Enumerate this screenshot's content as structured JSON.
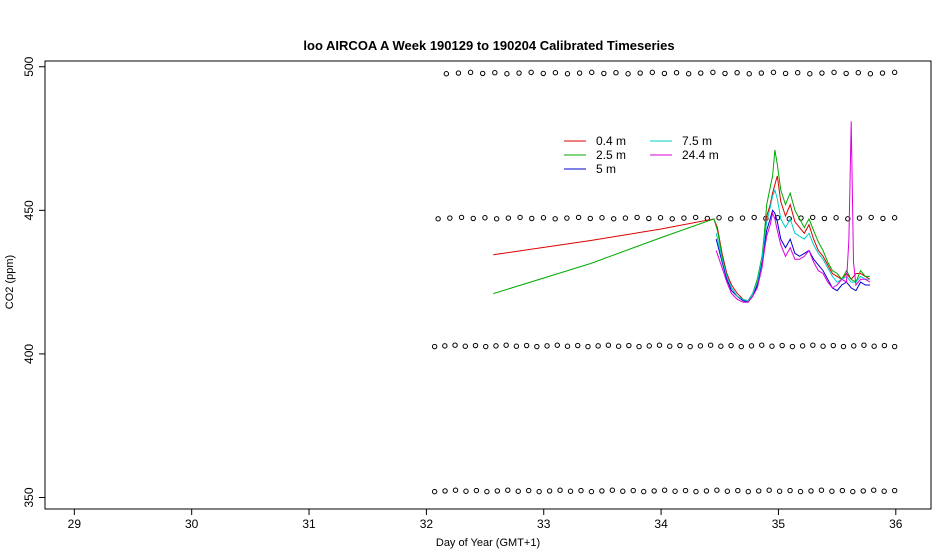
{
  "chart_data": {
    "type": "line",
    "title": "loo AIRCOA A  Week 190129 to 190204  Calibrated Timeseries",
    "xlabel": "Day of Year (GMT+1)",
    "ylabel": "CO2 (ppm)",
    "xlim": [
      28.75,
      36.3
    ],
    "ylim": [
      346,
      502
    ],
    "xticks": [
      29,
      30,
      31,
      32,
      33,
      34,
      35,
      36
    ],
    "yticks": [
      350,
      400,
      450,
      500
    ],
    "grid": false,
    "legend_position": "top-center",
    "series": [
      {
        "name": "0.4 m",
        "color": "#dd0000",
        "points": [
          [
            32.57,
            434.5
          ],
          [
            33.4,
            439.5
          ],
          [
            34.0,
            443.5
          ],
          [
            34.45,
            447.0
          ],
          [
            34.48,
            444
          ],
          [
            34.52,
            435
          ],
          [
            34.56,
            428
          ],
          [
            34.6,
            424
          ],
          [
            34.65,
            421
          ],
          [
            34.7,
            419
          ],
          [
            34.74,
            418.5
          ],
          [
            34.78,
            421
          ],
          [
            34.82,
            425
          ],
          [
            34.86,
            432
          ],
          [
            34.88,
            440
          ],
          [
            34.9,
            448
          ],
          [
            34.93,
            452
          ],
          [
            34.95,
            456
          ],
          [
            34.97,
            459
          ],
          [
            34.99,
            462
          ],
          [
            35.02,
            453
          ],
          [
            35.06,
            448
          ],
          [
            35.1,
            452
          ],
          [
            35.14,
            446
          ],
          [
            35.18,
            444
          ],
          [
            35.22,
            442
          ],
          [
            35.26,
            445
          ],
          [
            35.3,
            440
          ],
          [
            35.34,
            436
          ],
          [
            35.38,
            434
          ],
          [
            35.42,
            431
          ],
          [
            35.46,
            428
          ],
          [
            35.5,
            427
          ],
          [
            35.54,
            426
          ],
          [
            35.58,
            428
          ],
          [
            35.62,
            426
          ],
          [
            35.66,
            428
          ],
          [
            35.7,
            428
          ],
          [
            35.74,
            427
          ],
          [
            35.78,
            426
          ]
        ]
      },
      {
        "name": "2.5 m",
        "color": "#00aa00",
        "points": [
          [
            32.57,
            421.0
          ],
          [
            33.4,
            431.5
          ],
          [
            34.0,
            440.5
          ],
          [
            34.45,
            447.0
          ],
          [
            34.48,
            443
          ],
          [
            34.52,
            434
          ],
          [
            34.56,
            427
          ],
          [
            34.6,
            423
          ],
          [
            34.65,
            420
          ],
          [
            34.7,
            419
          ],
          [
            34.74,
            418
          ],
          [
            34.78,
            421
          ],
          [
            34.82,
            426
          ],
          [
            34.86,
            434
          ],
          [
            34.88,
            442
          ],
          [
            34.9,
            452
          ],
          [
            34.93,
            458
          ],
          [
            34.95,
            462
          ],
          [
            34.97,
            471
          ],
          [
            34.99,
            466
          ],
          [
            35.02,
            457
          ],
          [
            35.06,
            452
          ],
          [
            35.1,
            456
          ],
          [
            35.14,
            450
          ],
          [
            35.18,
            447
          ],
          [
            35.22,
            444
          ],
          [
            35.26,
            447
          ],
          [
            35.3,
            443
          ],
          [
            35.34,
            439
          ],
          [
            35.38,
            436
          ],
          [
            35.42,
            432
          ],
          [
            35.46,
            429
          ],
          [
            35.5,
            428
          ],
          [
            35.54,
            426
          ],
          [
            35.58,
            429
          ],
          [
            35.62,
            426
          ],
          [
            35.66,
            425
          ],
          [
            35.7,
            429
          ],
          [
            35.74,
            427
          ],
          [
            35.78,
            427
          ]
        ]
      },
      {
        "name": "5 m",
        "color": "#0000cc",
        "points": [
          [
            34.47,
            440
          ],
          [
            34.52,
            432
          ],
          [
            34.56,
            426
          ],
          [
            34.6,
            422
          ],
          [
            34.65,
            420
          ],
          [
            34.7,
            418.5
          ],
          [
            34.74,
            418
          ],
          [
            34.78,
            420
          ],
          [
            34.82,
            424
          ],
          [
            34.86,
            432
          ],
          [
            34.88,
            438
          ],
          [
            34.9,
            443
          ],
          [
            34.93,
            447
          ],
          [
            34.95,
            450
          ],
          [
            34.97,
            449
          ],
          [
            34.99,
            446
          ],
          [
            35.02,
            440
          ],
          [
            35.06,
            437
          ],
          [
            35.1,
            440
          ],
          [
            35.14,
            435
          ],
          [
            35.18,
            434
          ],
          [
            35.22,
            435
          ],
          [
            35.26,
            436
          ],
          [
            35.3,
            433
          ],
          [
            35.34,
            431
          ],
          [
            35.38,
            429
          ],
          [
            35.42,
            426
          ],
          [
            35.46,
            423
          ],
          [
            35.5,
            422
          ],
          [
            35.54,
            424
          ],
          [
            35.58,
            425
          ],
          [
            35.62,
            423
          ],
          [
            35.66,
            422
          ],
          [
            35.7,
            425
          ],
          [
            35.74,
            424
          ],
          [
            35.78,
            424
          ]
        ]
      },
      {
        "name": "7.5 m",
        "color": "#00cccc",
        "points": [
          [
            34.47,
            442
          ],
          [
            34.52,
            433
          ],
          [
            34.56,
            427
          ],
          [
            34.6,
            423
          ],
          [
            34.65,
            420
          ],
          [
            34.7,
            419
          ],
          [
            34.74,
            418.5
          ],
          [
            34.78,
            421
          ],
          [
            34.82,
            425
          ],
          [
            34.86,
            433
          ],
          [
            34.88,
            440
          ],
          [
            34.9,
            446
          ],
          [
            34.93,
            451
          ],
          [
            34.95,
            455
          ],
          [
            34.97,
            457
          ],
          [
            34.99,
            454
          ],
          [
            35.02,
            447
          ],
          [
            35.06,
            444
          ],
          [
            35.1,
            447
          ],
          [
            35.14,
            442
          ],
          [
            35.18,
            441
          ],
          [
            35.22,
            440
          ],
          [
            35.26,
            442
          ],
          [
            35.3,
            438
          ],
          [
            35.34,
            435
          ],
          [
            35.38,
            433
          ],
          [
            35.42,
            430
          ],
          [
            35.46,
            427
          ],
          [
            35.5,
            425
          ],
          [
            35.54,
            426
          ],
          [
            35.58,
            427
          ],
          [
            35.62,
            425
          ],
          [
            35.66,
            425
          ],
          [
            35.7,
            427
          ],
          [
            35.74,
            426
          ],
          [
            35.78,
            426
          ]
        ]
      },
      {
        "name": "24.4 m",
        "color": "#dd00dd",
        "points": [
          [
            34.47,
            436
          ],
          [
            34.52,
            430
          ],
          [
            34.56,
            425
          ],
          [
            34.6,
            421
          ],
          [
            34.65,
            419
          ],
          [
            34.7,
            418
          ],
          [
            34.74,
            418
          ],
          [
            34.78,
            420
          ],
          [
            34.82,
            423
          ],
          [
            34.86,
            430
          ],
          [
            34.88,
            436
          ],
          [
            34.9,
            441
          ],
          [
            34.93,
            445
          ],
          [
            34.95,
            449
          ],
          [
            34.97,
            447
          ],
          [
            34.99,
            443
          ],
          [
            35.02,
            438
          ],
          [
            35.06,
            434
          ],
          [
            35.1,
            437
          ],
          [
            35.14,
            433
          ],
          [
            35.18,
            433
          ],
          [
            35.22,
            434
          ],
          [
            35.26,
            436
          ],
          [
            35.3,
            432
          ],
          [
            35.34,
            429
          ],
          [
            35.38,
            428
          ],
          [
            35.42,
            425
          ],
          [
            35.46,
            423
          ],
          [
            35.5,
            424
          ],
          [
            35.54,
            426
          ],
          [
            35.58,
            425
          ],
          [
            35.6,
            440
          ],
          [
            35.62,
            481
          ],
          [
            35.64,
            432
          ],
          [
            35.66,
            424
          ],
          [
            35.7,
            426
          ],
          [
            35.74,
            426
          ],
          [
            35.78,
            425
          ]
        ]
      }
    ],
    "flag_rows": [
      {
        "y": 497.8,
        "x_start": 32.17,
        "x_end": 35.99,
        "count": 38
      },
      {
        "y": 447.3,
        "x_start": 32.1,
        "x_end": 35.99,
        "count": 40
      },
      {
        "y": 402.8,
        "x_start": 32.07,
        "x_end": 35.99,
        "count": 46
      },
      {
        "y": 352.3,
        "x_start": 32.07,
        "x_end": 35.99,
        "count": 45
      }
    ]
  }
}
